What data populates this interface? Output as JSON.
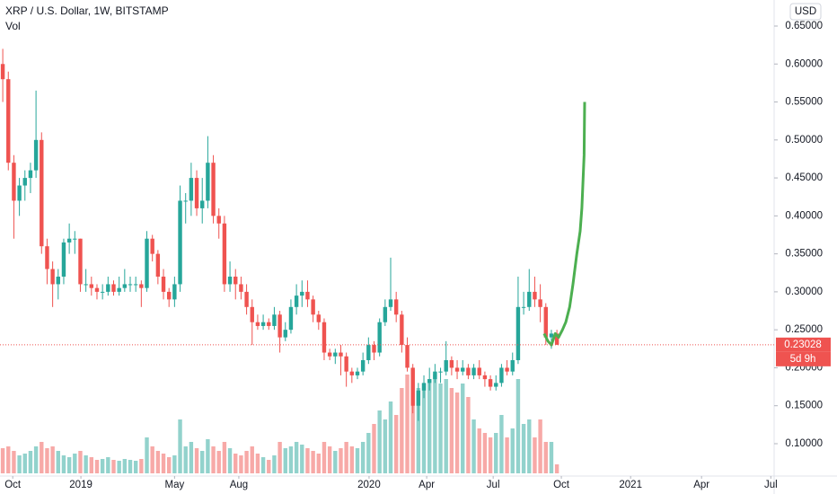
{
  "chart_data": {
    "type": "candlestick",
    "title": "XRP / U.S. Dollar, 1W, BITSTAMP",
    "volume_label": "Vol",
    "currency": "USD",
    "last_price": 0.23028,
    "countdown": "5d 9h",
    "up_color": "#26a69a",
    "down_color": "#ef5350",
    "ylim": [
      0.0574,
      0.6843
    ],
    "yticks": [
      {
        "value": 0.1,
        "label": "0.10000"
      },
      {
        "value": 0.15,
        "label": "0.15000"
      },
      {
        "value": 0.2,
        "label": "0.20000"
      },
      {
        "value": 0.25,
        "label": "0.25000"
      },
      {
        "value": 0.3,
        "label": "0.30000"
      },
      {
        "value": 0.35,
        "label": "0.35000"
      },
      {
        "value": 0.4,
        "label": "0.40000"
      },
      {
        "value": 0.45,
        "label": "0.45000"
      },
      {
        "value": 0.5,
        "label": "0.50000"
      },
      {
        "value": 0.55,
        "label": "0.55000"
      },
      {
        "value": 0.6,
        "label": "0.60000"
      },
      {
        "value": 0.65,
        "label": "0.65000"
      }
    ],
    "xlim": [
      -0.5,
      139.2
    ],
    "xticks": [
      {
        "value": 1.8,
        "label": "Oct"
      },
      {
        "value": 14.1,
        "label": "2019"
      },
      {
        "value": 31,
        "label": "May"
      },
      {
        "value": 42.6,
        "label": "Aug"
      },
      {
        "value": 66.1,
        "label": "2020"
      },
      {
        "value": 76.5,
        "label": "Apr"
      },
      {
        "value": 88.5,
        "label": "Jul"
      },
      {
        "value": 100.8,
        "label": "Oct"
      },
      {
        "value": 113.3,
        "label": "2021"
      },
      {
        "value": 126.1,
        "label": "Apr"
      },
      {
        "value": 138.6,
        "label": "Jul"
      }
    ],
    "volume_lim": [
      0,
      400
    ],
    "open": [
      0.6,
      0.58,
      0.47,
      0.42,
      0.44,
      0.45,
      0.46,
      0.5,
      0.36,
      0.33,
      0.31,
      0.32,
      0.365,
      0.37,
      0.37,
      0.31,
      0.31,
      0.305,
      0.3,
      0.3,
      0.31,
      0.3,
      0.305,
      0.31,
      0.31,
      0.31,
      0.305,
      0.37,
      0.35,
      0.32,
      0.3,
      0.29,
      0.31,
      0.42,
      0.42,
      0.45,
      0.41,
      0.42,
      0.47,
      0.4,
      0.39,
      0.31,
      0.32,
      0.31,
      0.3,
      0.28,
      0.26,
      0.255,
      0.26,
      0.255,
      0.27,
      0.24,
      0.25,
      0.28,
      0.295,
      0.3,
      0.29,
      0.27,
      0.26,
      0.22,
      0.215,
      0.22,
      0.215,
      0.195,
      0.19,
      0.195,
      0.21,
      0.23,
      0.22,
      0.26,
      0.28,
      0.29,
      0.27,
      0.23,
      0.2,
      0.15,
      0.17,
      0.18,
      0.185,
      0.195,
      0.195,
      0.21,
      0.2,
      0.195,
      0.2,
      0.19,
      0.2,
      0.19,
      0.185,
      0.175,
      0.18,
      0.2,
      0.195,
      0.21,
      0.28,
      0.28,
      0.3,
      0.29,
      0.28,
      0.24,
      0.245
    ],
    "high": [
      0.62,
      0.59,
      0.48,
      0.45,
      0.46,
      0.47,
      0.565,
      0.51,
      0.37,
      0.34,
      0.33,
      0.37,
      0.39,
      0.38,
      0.37,
      0.33,
      0.32,
      0.31,
      0.31,
      0.32,
      0.315,
      0.32,
      0.33,
      0.32,
      0.32,
      0.315,
      0.38,
      0.375,
      0.355,
      0.33,
      0.305,
      0.32,
      0.44,
      0.43,
      0.47,
      0.46,
      0.45,
      0.505,
      0.48,
      0.41,
      0.4,
      0.34,
      0.33,
      0.32,
      0.31,
      0.29,
      0.27,
      0.27,
      0.265,
      0.28,
      0.275,
      0.26,
      0.29,
      0.31,
      0.315,
      0.315,
      0.295,
      0.275,
      0.265,
      0.225,
      0.225,
      0.23,
      0.22,
      0.2,
      0.2,
      0.22,
      0.24,
      0.235,
      0.265,
      0.29,
      0.345,
      0.3,
      0.275,
      0.24,
      0.205,
      0.18,
      0.19,
      0.2,
      0.205,
      0.2,
      0.235,
      0.215,
      0.21,
      0.21,
      0.205,
      0.205,
      0.21,
      0.195,
      0.19,
      0.19,
      0.205,
      0.21,
      0.22,
      0.32,
      0.3,
      0.33,
      0.32,
      0.31,
      0.285,
      0.25,
      0.25
    ],
    "low": [
      0.55,
      0.46,
      0.37,
      0.4,
      0.42,
      0.43,
      0.45,
      0.35,
      0.31,
      0.28,
      0.29,
      0.31,
      0.35,
      0.35,
      0.3,
      0.3,
      0.295,
      0.29,
      0.29,
      0.295,
      0.295,
      0.295,
      0.3,
      0.3,
      0.3,
      0.28,
      0.3,
      0.34,
      0.31,
      0.29,
      0.28,
      0.28,
      0.3,
      0.39,
      0.4,
      0.4,
      0.39,
      0.41,
      0.39,
      0.37,
      0.3,
      0.3,
      0.29,
      0.29,
      0.27,
      0.23,
      0.25,
      0.25,
      0.25,
      0.25,
      0.22,
      0.235,
      0.245,
      0.27,
      0.28,
      0.28,
      0.26,
      0.25,
      0.21,
      0.21,
      0.205,
      0.19,
      0.175,
      0.18,
      0.185,
      0.19,
      0.205,
      0.21,
      0.215,
      0.255,
      0.275,
      0.26,
      0.22,
      0.195,
      0.14,
      0.13,
      0.16,
      0.17,
      0.18,
      0.18,
      0.19,
      0.19,
      0.185,
      0.19,
      0.185,
      0.185,
      0.185,
      0.175,
      0.17,
      0.17,
      0.175,
      0.19,
      0.19,
      0.205,
      0.27,
      0.275,
      0.28,
      0.26,
      0.23,
      0.225,
      0.23
    ],
    "close": [
      0.58,
      0.47,
      0.42,
      0.44,
      0.45,
      0.46,
      0.5,
      0.36,
      0.33,
      0.31,
      0.32,
      0.365,
      0.37,
      0.37,
      0.31,
      0.31,
      0.305,
      0.3,
      0.3,
      0.31,
      0.3,
      0.305,
      0.31,
      0.31,
      0.31,
      0.305,
      0.37,
      0.35,
      0.32,
      0.3,
      0.29,
      0.31,
      0.42,
      0.42,
      0.45,
      0.41,
      0.42,
      0.47,
      0.4,
      0.39,
      0.31,
      0.32,
      0.31,
      0.3,
      0.28,
      0.26,
      0.255,
      0.26,
      0.255,
      0.27,
      0.24,
      0.25,
      0.28,
      0.295,
      0.3,
      0.29,
      0.27,
      0.26,
      0.22,
      0.215,
      0.22,
      0.215,
      0.195,
      0.19,
      0.195,
      0.21,
      0.23,
      0.22,
      0.26,
      0.28,
      0.29,
      0.27,
      0.23,
      0.2,
      0.15,
      0.17,
      0.18,
      0.185,
      0.195,
      0.195,
      0.21,
      0.2,
      0.195,
      0.2,
      0.19,
      0.2,
      0.19,
      0.185,
      0.175,
      0.18,
      0.2,
      0.195,
      0.21,
      0.28,
      0.28,
      0.3,
      0.29,
      0.28,
      0.24,
      0.245,
      0.23028
    ],
    "volume": [
      28,
      30,
      25,
      20,
      22,
      25,
      30,
      35,
      28,
      30,
      25,
      20,
      18,
      22,
      25,
      20,
      18,
      15,
      16,
      18,
      15,
      14,
      16,
      15,
      14,
      16,
      40,
      30,
      25,
      22,
      18,
      20,
      60,
      30,
      35,
      28,
      25,
      38,
      30,
      25,
      35,
      28,
      22,
      20,
      25,
      30,
      22,
      18,
      15,
      20,
      35,
      28,
      30,
      35,
      32,
      28,
      25,
      22,
      35,
      30,
      25,
      28,
      35,
      30,
      28,
      35,
      45,
      55,
      70,
      60,
      80,
      65,
      95,
      110,
      115,
      95,
      100,
      105,
      110,
      100,
      105,
      95,
      90,
      100,
      85,
      60,
      50,
      45,
      40,
      45,
      65,
      40,
      50,
      105,
      55,
      60,
      40,
      60,
      35,
      35,
      10
    ],
    "forecast": {
      "color": "#4caf50",
      "x": [
        97.7,
        98.4,
        99,
        99.7,
        100.3,
        101,
        101.6,
        102.3,
        102.9,
        103.6,
        104.2,
        104.5,
        104.9,
        105
      ],
      "values": [
        0.245,
        0.235,
        0.23,
        0.245,
        0.24,
        0.25,
        0.26,
        0.28,
        0.31,
        0.35,
        0.38,
        0.41,
        0.48,
        0.55
      ]
    }
  }
}
